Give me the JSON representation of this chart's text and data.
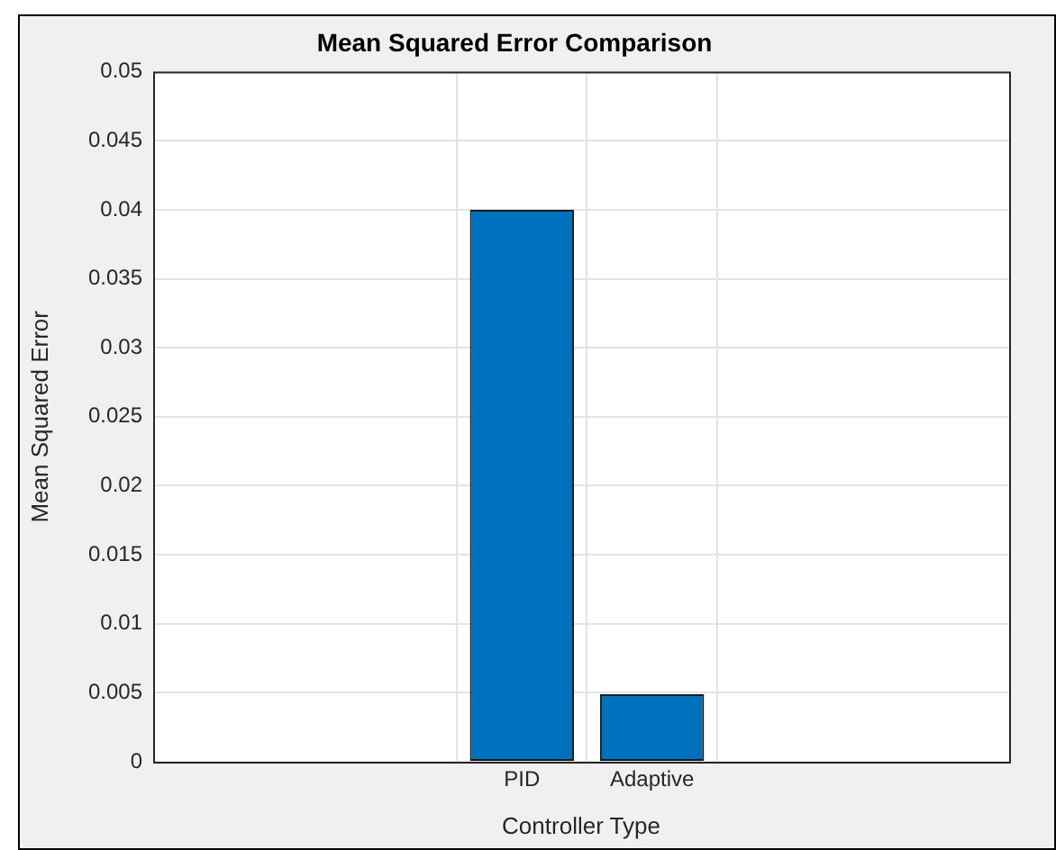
{
  "chart_data": {
    "type": "bar",
    "title": "Mean Squared Error Comparison",
    "xlabel": "Controller Type",
    "ylabel": "Mean Squared Error",
    "categories": [
      "PID",
      "Adaptive"
    ],
    "values": [
      0.04,
      0.0049
    ],
    "color": "#0072bd",
    "ylim": [
      0,
      0.05
    ],
    "yticks": [
      0,
      0.005,
      0.01,
      0.015,
      0.02,
      0.025,
      0.03,
      0.035,
      0.04,
      0.045,
      0.05
    ],
    "grid": true
  }
}
